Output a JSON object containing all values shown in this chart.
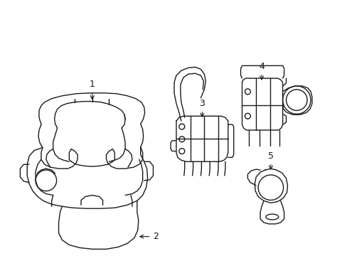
{
  "background_color": "#ffffff",
  "line_color": "#1a1a1a",
  "line_width": 1.0,
  "label_fontsize": 9,
  "fig_width": 4.89,
  "fig_height": 3.6,
  "dpi": 100
}
